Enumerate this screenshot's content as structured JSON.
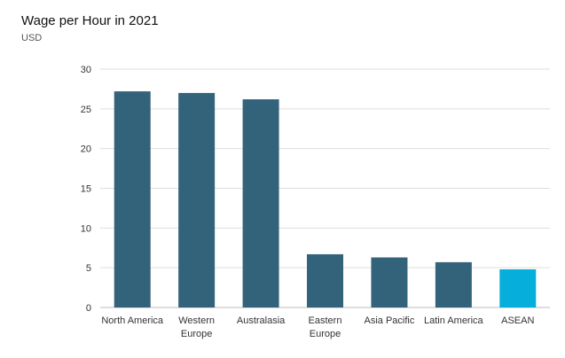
{
  "chart_data": {
    "type": "bar",
    "title": "Wage per Hour in 2021",
    "subtitle": "USD",
    "categories": [
      [
        "North America"
      ],
      [
        "Western",
        "Europe"
      ],
      [
        "Australasia"
      ],
      [
        "Eastern",
        "Europe"
      ],
      [
        "Asia Pacific"
      ],
      [
        "Latin America"
      ],
      [
        "ASEAN"
      ]
    ],
    "values": [
      27.2,
      27.0,
      26.2,
      6.7,
      6.3,
      5.7,
      4.8
    ],
    "colors": [
      "#33637a",
      "#33637a",
      "#33637a",
      "#33637a",
      "#33637a",
      "#33637a",
      "#05aedb"
    ],
    "yticks": [
      0,
      5,
      10,
      15,
      20,
      25,
      30
    ],
    "ylim": [
      0,
      30
    ],
    "grid": true,
    "legend": "none",
    "xlabel": "",
    "ylabel": ""
  }
}
